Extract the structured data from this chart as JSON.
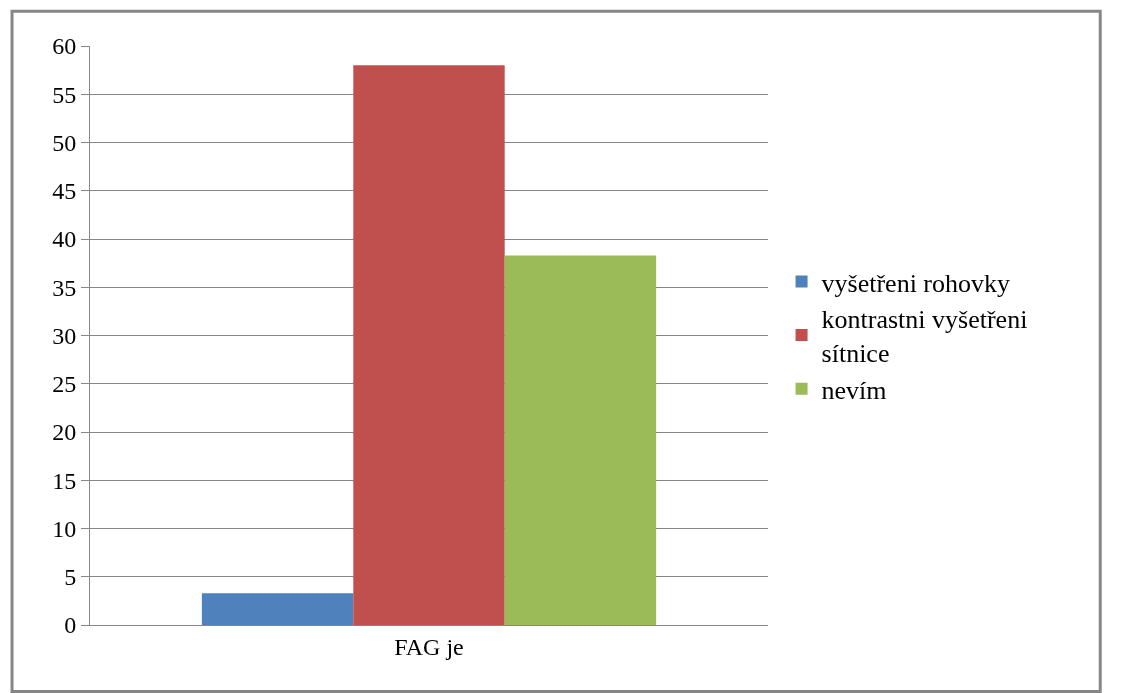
{
  "chart_data": {
    "type": "bar",
    "categories": [
      "FAG je"
    ],
    "series": [
      {
        "name": "vyšetřeni rohovky",
        "color": "#4f81bd",
        "values": [
          3.3
        ]
      },
      {
        "name": "kontrastni vyšetřeni sítnice",
        "color": "#c0504d",
        "values": [
          58.0
        ]
      },
      {
        "name": "nevím",
        "color": "#9bbb59",
        "values": [
          38.3
        ]
      }
    ],
    "ylim": [
      0,
      60
    ],
    "yticks": [
      0,
      5,
      10,
      15,
      20,
      25,
      30,
      35,
      40,
      45,
      50,
      55,
      60
    ],
    "grid": "y",
    "legend": "right"
  }
}
